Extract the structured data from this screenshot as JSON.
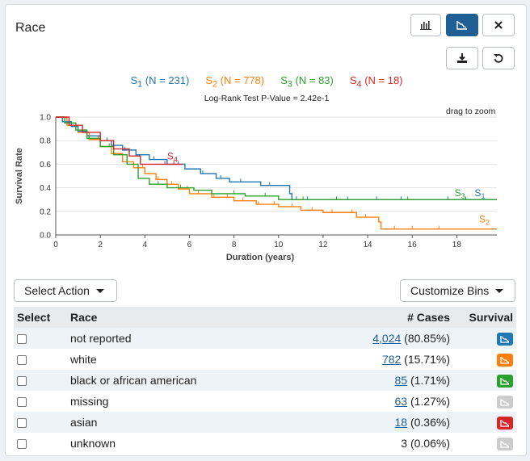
{
  "title": "Race",
  "toolbar": {
    "histogram_icon": "bar-chart-icon",
    "survival_icon": "survival-curve-icon",
    "close_icon": "close-icon",
    "download_icon": "download-icon",
    "reset_icon": "reset-icon"
  },
  "legend": [
    {
      "name": "S",
      "sub": "1",
      "rest": " (N = 231)",
      "color": "#1f77b4"
    },
    {
      "name": "S",
      "sub": "2",
      "rest": " (N = 778)",
      "color": "#ff7f0e"
    },
    {
      "name": "S",
      "sub": "3",
      "rest": " (N = 83)",
      "color": "#2ca02c"
    },
    {
      "name": "S",
      "sub": "4",
      "rest": " (N = 18)",
      "color": "#d62728"
    }
  ],
  "pvalue": "Log-Rank Test P-Value = 2.42e-1",
  "drag_hint": "drag to zoom",
  "chart_data": {
    "type": "line",
    "xlabel": "Duration (years)",
    "ylabel": "Survival Rate",
    "xlim": [
      0,
      19.8
    ],
    "ylim": [
      0,
      1.0
    ],
    "xticks": [
      0,
      2,
      4,
      6,
      8,
      10,
      12,
      14,
      16,
      18
    ],
    "yticks": [
      0.0,
      0.2,
      0.4,
      0.6,
      0.8,
      1.0
    ],
    "series": [
      {
        "name": "S1",
        "label_sub": "1",
        "color": "#1f77b4",
        "points": [
          [
            0,
            1
          ],
          [
            0.3,
            0.96
          ],
          [
            0.7,
            0.92
          ],
          [
            1.0,
            0.88
          ],
          [
            1.4,
            0.84
          ],
          [
            2.0,
            0.8
          ],
          [
            2.5,
            0.76
          ],
          [
            3.0,
            0.72
          ],
          [
            3.6,
            0.68
          ],
          [
            4.2,
            0.64
          ],
          [
            5.0,
            0.6
          ],
          [
            5.8,
            0.56
          ],
          [
            6.5,
            0.52
          ],
          [
            7.2,
            0.48
          ],
          [
            7.8,
            0.45
          ],
          [
            9.2,
            0.42
          ],
          [
            10.5,
            0.35
          ],
          [
            10.6,
            0.3
          ],
          [
            19.8,
            0.3
          ]
        ],
        "ticks": [
          1.2,
          2.3,
          3.1,
          4.4,
          5.5,
          6.6,
          7.4,
          8.3,
          9.6,
          10.8,
          11.3,
          13.1,
          14.4,
          15.5,
          17.6,
          18.4
        ]
      },
      {
        "name": "S2",
        "label_sub": "2",
        "color": "#ff7f0e",
        "points": [
          [
            0,
            1
          ],
          [
            0.5,
            0.93
          ],
          [
            1.0,
            0.87
          ],
          [
            1.5,
            0.81
          ],
          [
            2.0,
            0.75
          ],
          [
            2.5,
            0.69
          ],
          [
            3.0,
            0.62
          ],
          [
            3.5,
            0.57
          ],
          [
            4.0,
            0.52
          ],
          [
            4.5,
            0.47
          ],
          [
            5.0,
            0.43
          ],
          [
            5.5,
            0.39
          ],
          [
            6.0,
            0.35
          ],
          [
            7.0,
            0.32
          ],
          [
            8.0,
            0.29
          ],
          [
            9.0,
            0.26
          ],
          [
            10.0,
            0.24
          ],
          [
            11.0,
            0.21
          ],
          [
            12.0,
            0.19
          ],
          [
            13.5,
            0.15
          ],
          [
            14.5,
            0.11
          ],
          [
            14.6,
            0.05
          ],
          [
            19.8,
            0.05
          ]
        ],
        "ticks": [
          0.6,
          1.3,
          1.9,
          2.6,
          3.2,
          3.9,
          4.6,
          5.2,
          5.9,
          6.4,
          7.1,
          7.7,
          8.4,
          9.1,
          9.8,
          10.6,
          11.5,
          12.4,
          13.3,
          13.9,
          15.2,
          16.0,
          17.2
        ]
      },
      {
        "name": "S3",
        "label_sub": "3",
        "color": "#2ca02c",
        "points": [
          [
            0,
            1
          ],
          [
            0.4,
            0.95
          ],
          [
            0.9,
            0.89
          ],
          [
            1.4,
            0.82
          ],
          [
            2.0,
            0.75
          ],
          [
            2.6,
            0.68
          ],
          [
            3.2,
            0.6
          ],
          [
            3.7,
            0.48
          ],
          [
            4.2,
            0.43
          ],
          [
            5.0,
            0.4
          ],
          [
            6.2,
            0.38
          ],
          [
            7.0,
            0.35
          ],
          [
            8.5,
            0.33
          ],
          [
            10.0,
            0.3
          ],
          [
            19.8,
            0.3
          ]
        ],
        "ticks": [
          1.5,
          2.4,
          4.6,
          5.6,
          8.0,
          9.4,
          11.1,
          12.6,
          15.8
        ]
      },
      {
        "name": "S4",
        "label_sub": "4",
        "color": "#d62728",
        "points": [
          [
            0,
            1
          ],
          [
            0.6,
            0.93
          ],
          [
            1.2,
            0.87
          ],
          [
            2.0,
            0.8
          ],
          [
            2.6,
            0.73
          ],
          [
            3.3,
            0.67
          ],
          [
            3.8,
            0.6
          ],
          [
            5.7,
            0.6
          ]
        ],
        "ticks": [
          4.9,
          5.3
        ]
      }
    ]
  },
  "actions": {
    "select_action": "Select Action",
    "customize_bins": "Customize Bins"
  },
  "table": {
    "headers": [
      "Select",
      "Race",
      "# Cases",
      "Survival"
    ],
    "rows": [
      {
        "race": "not reported",
        "count": "4,024",
        "pct": " (80.85%)",
        "linked": true,
        "color": "#1f77b4"
      },
      {
        "race": "white",
        "count": "782",
        "pct": " (15.71%)",
        "linked": true,
        "color": "#ff7f0e"
      },
      {
        "race": "black or african american",
        "count": "85",
        "pct": " (1.71%)",
        "linked": true,
        "color": "#2ca02c"
      },
      {
        "race": "missing",
        "count": "63",
        "pct": " (1.27%)",
        "linked": true,
        "color": "#cccccc"
      },
      {
        "race": "asian",
        "count": "18",
        "pct": " (0.36%)",
        "linked": true,
        "color": "#d62728"
      },
      {
        "race": "unknown",
        "count": "3",
        "pct": " (0.06%)",
        "linked": false,
        "color": "#cccccc"
      }
    ]
  }
}
